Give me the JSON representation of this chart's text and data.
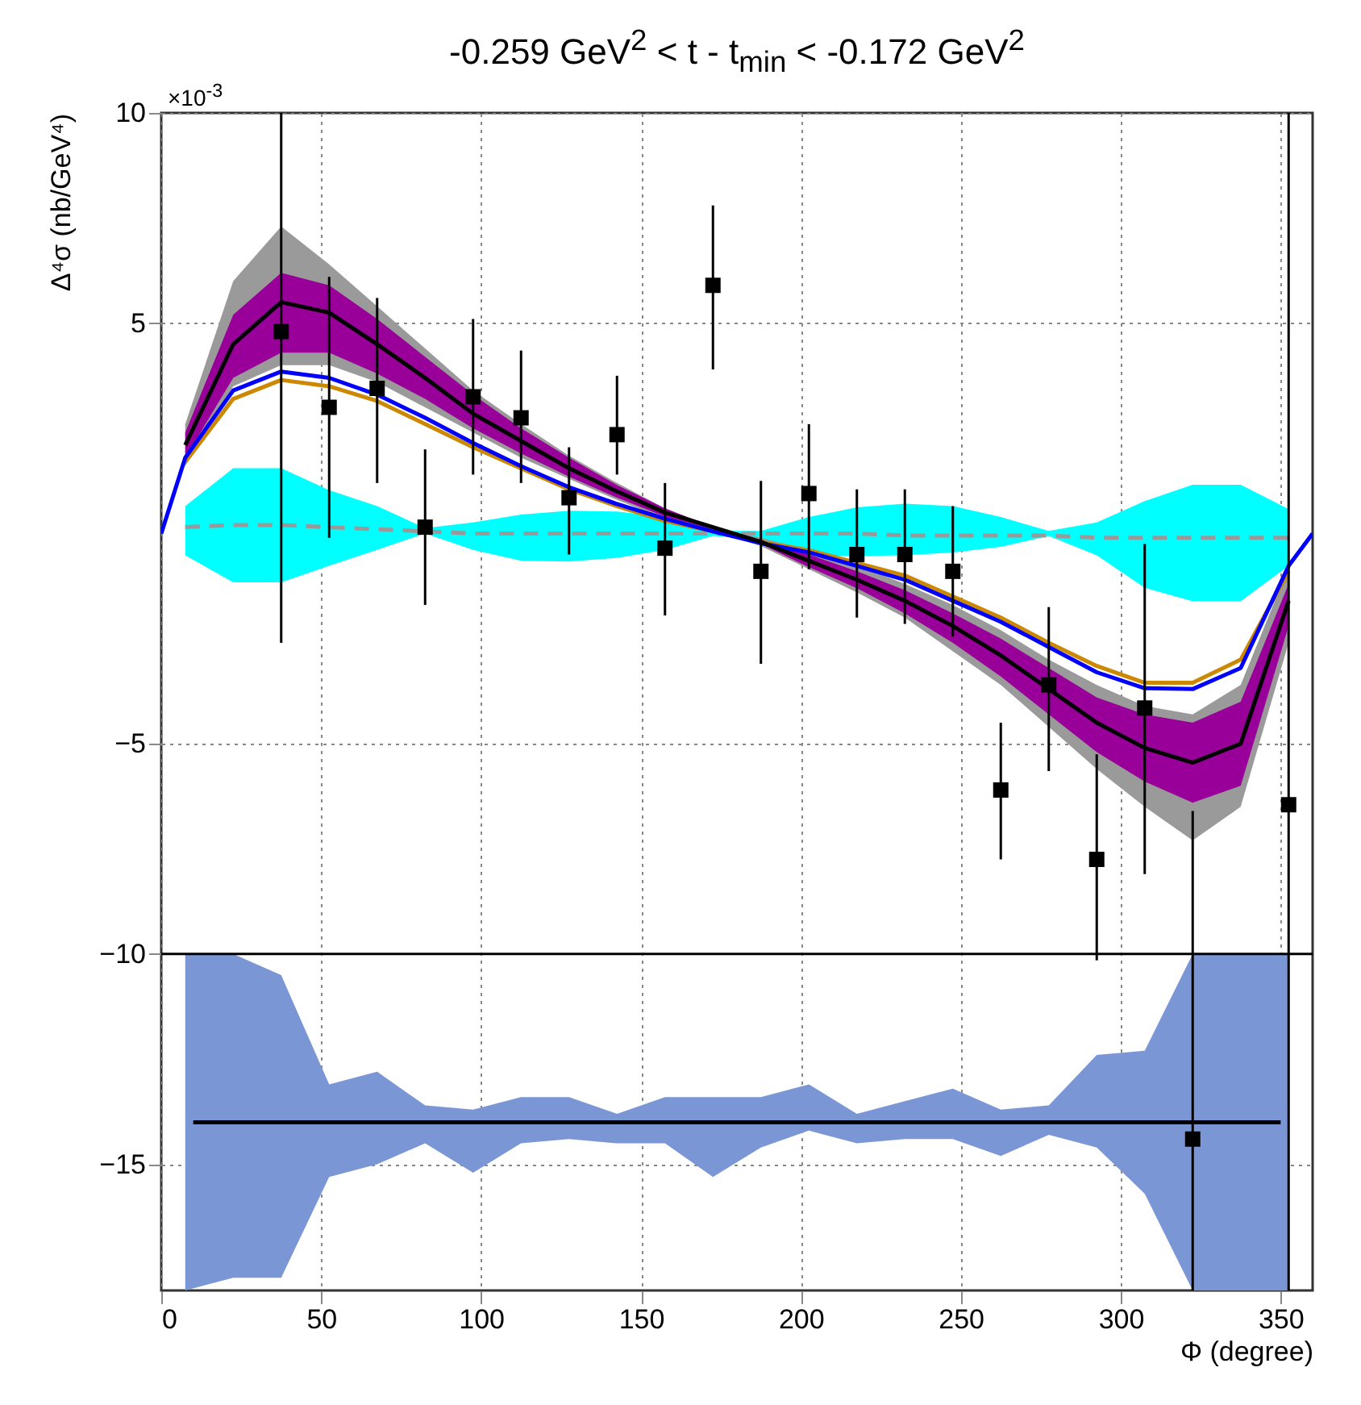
{
  "chart_data": {
    "type": "line",
    "title": "-0.259 GeV$^{2}$ < t - t$_{min}$ < -0.172 GeV$^{2}$",
    "xlabel": "Φ (degree)",
    "ylabel": "Δ⁴σ (nb/GeV⁴)",
    "annotations": [
      "×10$^{-3}$"
    ],
    "xlim": [
      0,
      360
    ],
    "ylim": [
      -18,
      10
    ],
    "xticks": [
      0,
      50,
      100,
      150,
      200,
      250,
      300,
      350
    ],
    "yticks": [
      -15,
      -10,
      -5,
      5,
      10
    ],
    "grid": true,
    "x": [
      7.5,
      22.5,
      37.5,
      52.5,
      67.5,
      82.5,
      97.5,
      112.5,
      127.5,
      142.5,
      157.5,
      172.5,
      187.5,
      202.5,
      217.5,
      232.5,
      247.5,
      262.5,
      277.5,
      292.5,
      307.5,
      322.5,
      337.5,
      352.5
    ],
    "ref_lines": [
      {
        "axis": "y",
        "value": -10,
        "color": "#000000"
      }
    ],
    "series": [
      {
        "color": "#7a96d4",
        "values": [
          null,
          null,
          null,
          null,
          null,
          null,
          null,
          null,
          null,
          null,
          null,
          null,
          null,
          null,
          null,
          null,
          null,
          null,
          null,
          null,
          null,
          null,
          null,
          null
        ],
        "upper": [
          -10,
          -10,
          -10.5,
          -13.1,
          -12.8,
          -13.6,
          -13.7,
          -13.4,
          -13.4,
          -13.8,
          -13.4,
          -13.4,
          -13.4,
          -13.1,
          -13.8,
          -13.5,
          -13.2,
          -13.7,
          -13.6,
          -12.4,
          -12.3,
          -10,
          -10,
          -10
        ],
        "lower": [
          -18,
          -17.7,
          -17.7,
          -15.3,
          -15.0,
          -14.5,
          -15.2,
          -14.5,
          -14.4,
          -14.5,
          -14.5,
          -15.3,
          -14.6,
          -14.2,
          -14.5,
          -14.4,
          -14.4,
          -14.8,
          -14.3,
          -14.6,
          -15.7,
          -18,
          -18,
          -18
        ]
      },
      {
        "color": "#00ffff",
        "values": [
          null,
          null,
          null,
          null,
          null,
          null,
          null,
          null,
          null,
          null,
          null,
          null,
          null,
          null,
          null,
          null,
          null,
          null,
          null,
          null,
          null,
          null,
          null,
          null
        ],
        "upper": [
          0.65,
          1.55,
          1.55,
          1.03,
          0.65,
          0.13,
          0.26,
          0.45,
          0.54,
          0.52,
          0.39,
          0.06,
          0.06,
          0.39,
          0.62,
          0.71,
          0.65,
          0.39,
          0.06,
          0.26,
          0.77,
          1.16,
          1.16,
          0.58
        ],
        "lower": [
          -0.52,
          -1.16,
          -1.16,
          -0.77,
          -0.39,
          0,
          -0.39,
          -0.65,
          -0.67,
          -0.58,
          -0.39,
          -0.06,
          -0.13,
          -0.52,
          -0.54,
          -0.52,
          -0.45,
          -0.32,
          -0.06,
          -0.52,
          -1.29,
          -1.61,
          -1.61,
          -0.77
        ]
      },
      {
        "color": "#9a9a9a",
        "values": [
          null,
          null,
          null,
          null,
          null,
          null,
          null,
          null,
          null,
          null,
          null,
          null,
          null,
          null,
          null,
          null,
          null,
          null,
          null,
          null,
          null,
          null,
          null,
          null
        ],
        "upper": [
          2.6,
          6.0,
          7.3,
          6.4,
          5.4,
          4.4,
          3.4,
          2.6,
          1.85,
          1.2,
          0.6,
          0.15,
          -0.1,
          -0.4,
          -0.75,
          -1.2,
          -1.7,
          -2.3,
          -3.0,
          -3.6,
          -4.1,
          -4.3,
          -3.6,
          -0.8
        ],
        "lower": [
          1.6,
          3.5,
          4.0,
          4.0,
          3.6,
          3.0,
          2.4,
          1.8,
          1.3,
          0.8,
          0.35,
          0.05,
          -0.3,
          -0.85,
          -1.4,
          -2.0,
          -2.8,
          -3.6,
          -4.6,
          -5.6,
          -6.5,
          -7.3,
          -6.5,
          -2.6
        ]
      },
      {
        "color": "#990099",
        "values": [
          null,
          null,
          null,
          null,
          null,
          null,
          null,
          null,
          null,
          null,
          null,
          null,
          null,
          null,
          null,
          null,
          null,
          null,
          null,
          null,
          null,
          null,
          null,
          null
        ],
        "upper": [
          2.4,
          5.2,
          6.2,
          5.9,
          5.1,
          4.2,
          3.3,
          2.5,
          1.8,
          1.15,
          0.6,
          0.15,
          -0.15,
          -0.5,
          -0.9,
          -1.35,
          -1.9,
          -2.5,
          -3.2,
          -3.9,
          -4.3,
          -4.5,
          -4.0,
          -1.2
        ],
        "lower": [
          1.8,
          3.7,
          4.3,
          4.3,
          3.8,
          3.2,
          2.5,
          1.9,
          1.35,
          0.85,
          0.4,
          0.1,
          -0.25,
          -0.8,
          -1.3,
          -1.9,
          -2.6,
          -3.4,
          -4.3,
          -5.2,
          -5.9,
          -6.4,
          -6.0,
          -2.2
        ]
      },
      {
        "color": "#999999",
        "line_style": "dashed",
        "values": [
          0.15,
          0.2,
          0.2,
          0.15,
          0.1,
          0.05,
          0,
          0,
          0,
          0,
          0,
          0,
          0,
          0,
          0,
          -0.05,
          -0.05,
          -0.05,
          -0.05,
          -0.1,
          -0.1,
          -0.1,
          -0.1,
          -0.1
        ]
      },
      {
        "color": "#cc8800",
        "values": [
          1.7,
          3.2,
          3.65,
          3.5,
          3.15,
          2.6,
          2.05,
          1.55,
          1.05,
          0.65,
          0.3,
          0.05,
          -0.2,
          -0.4,
          -0.7,
          -1.0,
          -1.5,
          -2.0,
          -2.6,
          -3.15,
          -3.55,
          -3.55,
          -3.0,
          -0.9
        ]
      },
      {
        "color": "#0000ff",
        "x": [
          0,
          7.5,
          22.5,
          37.5,
          52.5,
          67.5,
          82.5,
          97.5,
          112.5,
          127.5,
          142.5,
          157.5,
          172.5,
          187.5,
          202.5,
          217.5,
          232.5,
          247.5,
          262.5,
          277.5,
          292.5,
          307.5,
          322.5,
          337.5,
          352.5,
          360
        ],
        "values": [
          0,
          1.8,
          3.4,
          3.85,
          3.7,
          3.3,
          2.75,
          2.15,
          1.6,
          1.1,
          0.7,
          0.35,
          0.05,
          -0.23,
          -0.45,
          -0.77,
          -1.1,
          -1.6,
          -2.1,
          -2.7,
          -3.3,
          -3.68,
          -3.7,
          -3.2,
          -0.77,
          0
        ]
      },
      {
        "color": "#000000",
        "values": [
          2.1,
          4.5,
          5.5,
          5.25,
          4.5,
          3.7,
          2.85,
          2.2,
          1.55,
          1.0,
          0.5,
          0.15,
          -0.2,
          -0.65,
          -1.1,
          -1.6,
          -2.2,
          -2.9,
          -3.7,
          -4.5,
          -5.1,
          -5.45,
          -5.0,
          -1.6
        ]
      },
      {
        "color": "#000000",
        "x": [
          10,
          350
        ],
        "values": [
          -14,
          -14
        ]
      },
      {
        "type": "scatter",
        "color": "#000000",
        "marker": "square",
        "x": [
          37.5,
          52.5,
          67.5,
          82.5,
          97.5,
          112.5,
          127.5,
          142.5,
          157.5,
          172.5,
          187.5,
          202.5,
          217.5,
          232.5,
          247.5,
          262.5,
          277.5,
          292.5,
          307.5,
          322.5,
          352.5
        ],
        "values": [
          4.8,
          3.0,
          3.45,
          0.15,
          3.25,
          2.75,
          0.85,
          2.35,
          -0.35,
          5.9,
          -0.9,
          0.95,
          -0.5,
          -0.5,
          -0.9,
          -6.1,
          -3.6,
          -7.75,
          -4.15,
          -14.4,
          -6.45
        ],
        "errors": [
          [
            -2.6,
            10
          ],
          [
            -0.1,
            6.1
          ],
          [
            1.2,
            5.6
          ],
          [
            -1.7,
            2.0
          ],
          [
            1.4,
            5.1
          ],
          [
            1.2,
            4.35
          ],
          [
            -0.5,
            2.05
          ],
          [
            1.4,
            3.75
          ],
          [
            -1.95,
            1.2
          ],
          [
            3.9,
            7.8
          ],
          [
            -3.1,
            1.25
          ],
          [
            -0.85,
            2.6
          ],
          [
            -2.0,
            1.05
          ],
          [
            -2.15,
            1.05
          ],
          [
            -2.45,
            0.65
          ],
          [
            -7.75,
            -4.5
          ],
          [
            -5.65,
            -1.75
          ],
          [
            -10.15,
            -5.25
          ],
          [
            -8.1,
            -0.25
          ],
          [
            -18,
            -6.6
          ],
          [
            -18,
            10
          ]
        ]
      }
    ]
  }
}
